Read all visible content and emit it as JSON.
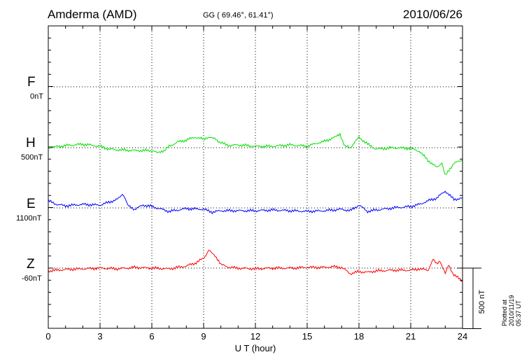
{
  "header": {
    "station": "Amderma (AMD)",
    "coordinates": "GG ( 69.46°,  61.41°)",
    "date": "2010/06/26"
  },
  "plotted_note": "Plotted at 2010/11/19 05:37  UT",
  "colors": {
    "F": "#ffaa00",
    "H": "#00e000",
    "E": "#0000ff",
    "Z": "#ff0000",
    "axis": "#000000",
    "grid": "#000000"
  },
  "components": [
    {
      "key": "F",
      "label": "F",
      "baseline": "0nT"
    },
    {
      "key": "H",
      "label": "H",
      "baseline": "500nT"
    },
    {
      "key": "E",
      "label": "E",
      "baseline": "1100nT"
    },
    {
      "key": "Z",
      "label": "Z",
      "baseline": "-60nT"
    }
  ],
  "chart_data": {
    "type": "line",
    "xlabel": "U T (hour)",
    "xlim": [
      0,
      24
    ],
    "xticks": [
      "0",
      "3",
      "6",
      "9",
      "12",
      "15",
      "18",
      "21",
      "24"
    ],
    "ylabel": "",
    "ylim_nT": [
      -250,
      750
    ],
    "scale_bar_label": "500 nT",
    "scale_bar_nT": 500,
    "grid": true,
    "series": [
      {
        "name": "F",
        "baseline": "0nT",
        "offset_nT": 0,
        "x": [],
        "values": []
      },
      {
        "name": "H",
        "baseline": "500nT",
        "offset_nT": 0,
        "x": [
          0,
          1,
          2,
          3,
          3.5,
          4,
          5,
          5.5,
          6,
          6.3,
          6.7,
          7,
          7.5,
          8,
          8.5,
          9,
          9.4,
          10,
          10.5,
          11,
          12,
          13,
          14,
          15,
          15.5,
          16,
          16.5,
          16.9,
          17.2,
          17.5,
          18,
          18.5,
          19,
          20,
          21,
          21.5,
          22,
          22.5,
          22.8,
          23,
          23.5,
          24
        ],
        "values": [
          0,
          3,
          5,
          2,
          -2,
          -3,
          -4,
          -4,
          -4,
          -7,
          -4,
          2,
          8,
          11,
          15,
          12,
          16,
          7,
          3,
          4,
          2,
          2,
          4,
          2,
          6,
          9,
          14,
          18,
          2,
          0,
          15,
          5,
          -2,
          0,
          -1,
          -5,
          -18,
          -28,
          -22,
          -40,
          -22,
          -18
        ]
      },
      {
        "name": "E",
        "baseline": "1100nT",
        "offset_nT": 0,
        "x": [
          0,
          0.5,
          1,
          2,
          3,
          3.5,
          4,
          4.3,
          4.6,
          5,
          5.5,
          6,
          7,
          8,
          9,
          9.5,
          10,
          11,
          12,
          13,
          14,
          15,
          16,
          17,
          17.5,
          18,
          18.5,
          19,
          20,
          21,
          21.5,
          22,
          22.5,
          23,
          23.5,
          24
        ],
        "values": [
          10,
          5,
          3,
          5,
          4,
          8,
          12,
          20,
          5,
          -2,
          4,
          2,
          -5,
          -1,
          -2,
          -6,
          -4,
          -4,
          -4,
          -3,
          -4,
          -5,
          -4,
          -2,
          -4,
          4,
          -5,
          -3,
          0,
          2,
          5,
          10,
          14,
          24,
          12,
          14
        ]
      },
      {
        "name": "Z",
        "baseline": "-60nT",
        "offset_nT": 0,
        "x": [
          0,
          0.5,
          1,
          2,
          3,
          4,
          5,
          6,
          7,
          8,
          8.5,
          9,
          9.3,
          9.6,
          10,
          10.5,
          11,
          12,
          13,
          14,
          15,
          16,
          16.5,
          17,
          17.5,
          18,
          18.5,
          19,
          20,
          21,
          21.5,
          22,
          22.3,
          22.5,
          22.7,
          23,
          23.2,
          23.5,
          24
        ],
        "values": [
          -4,
          -3,
          -2,
          -1,
          0,
          -1,
          1,
          0,
          -1,
          3,
          7,
          14,
          25,
          20,
          5,
          1,
          0,
          -1,
          0,
          0,
          1,
          1,
          2,
          1,
          -8,
          -5,
          -6,
          -4,
          -3,
          -3,
          -1,
          -3,
          12,
          6,
          10,
          -8,
          4,
          -10,
          -18
        ]
      }
    ]
  }
}
